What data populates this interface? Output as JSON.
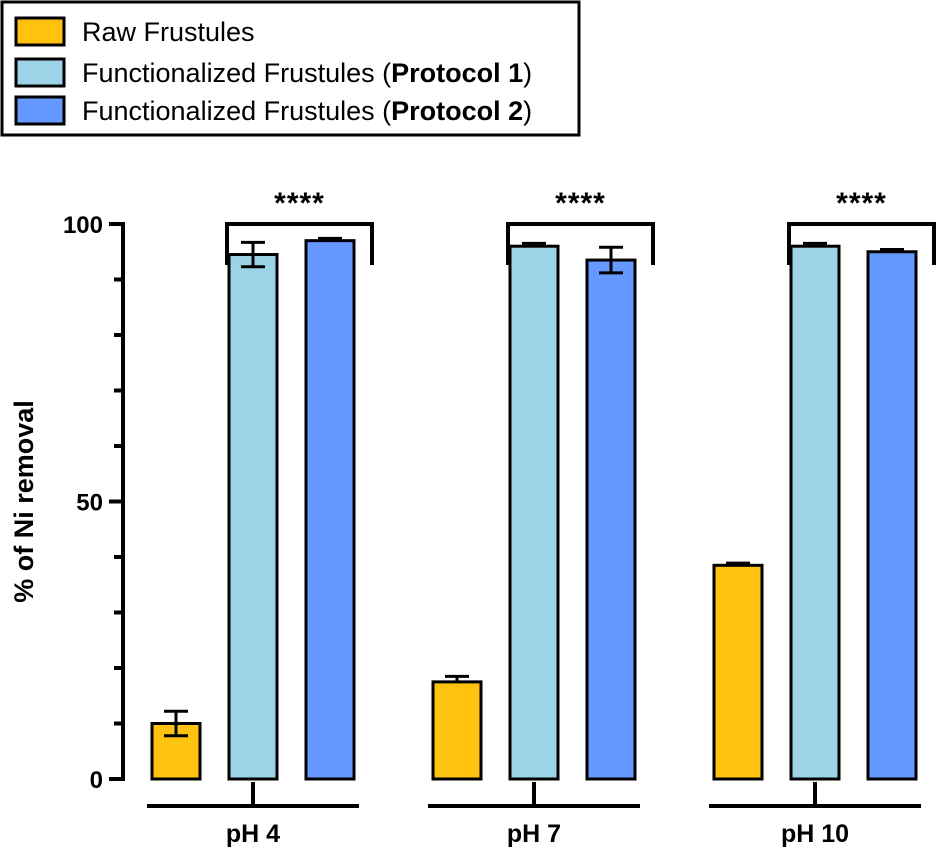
{
  "chart_data": {
    "type": "bar",
    "ylabel": "% of Ni removal",
    "ylim": [
      0,
      100
    ],
    "yticks": [
      0,
      50,
      100
    ],
    "categories": [
      "pH 4",
      "pH 7",
      "pH 10"
    ],
    "series": [
      {
        "name": "Raw Frustules",
        "color": "#FFC20E",
        "values": [
          10,
          17.5,
          38.5
        ],
        "errors": [
          2.2,
          1.0,
          0.4
        ]
      },
      {
        "name": "Functionalized Frustules (Protocol 1)",
        "color": "#9DD3E6",
        "values": [
          94.5,
          96,
          96
        ],
        "errors": [
          2.2,
          0.5,
          0.5
        ]
      },
      {
        "name": "Functionalized Frustules (Protocol 2)",
        "color": "#6699FF",
        "values": [
          97,
          93.5,
          95
        ],
        "errors": [
          0.4,
          2.3,
          0.4
        ]
      }
    ],
    "legend": {
      "position": "top-left",
      "entries": [
        {
          "text": "Raw Frustules",
          "bold_part": "",
          "suffix": ""
        },
        {
          "text": "Functionalized Frustules (",
          "bold_part": "Protocol 1",
          "suffix": ")"
        },
        {
          "text": "Functionalized Frustules (",
          "bold_part": "Protocol 2",
          "suffix": ")"
        }
      ]
    },
    "significance": [
      {
        "label": "****",
        "category": "pH 4"
      },
      {
        "label": "****",
        "category": "pH 7"
      },
      {
        "label": "****",
        "category": "pH 10"
      }
    ]
  }
}
